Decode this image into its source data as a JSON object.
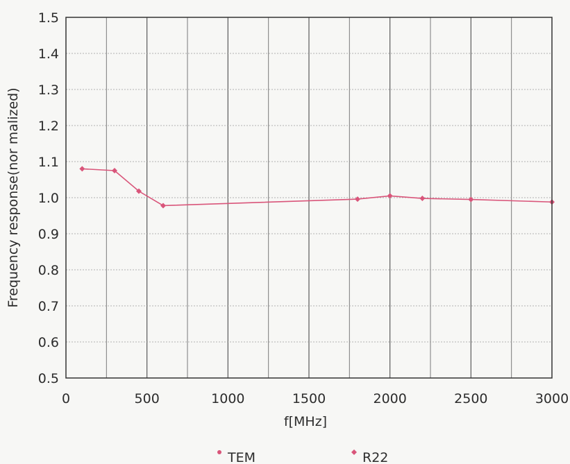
{
  "chart_data": {
    "type": "line",
    "xlabel": "f[MHz]",
    "ylabel": "Frequency response(nor malized)",
    "xlim": [
      0,
      3000
    ],
    "ylim": [
      0.5,
      1.5
    ],
    "xticks": [
      0,
      500,
      1000,
      1500,
      2000,
      2500,
      3000
    ],
    "yticks": [
      "0.5",
      "0.6",
      "0.7",
      "0.8",
      "0.9",
      "1.0",
      "1.1",
      "1.2",
      "1.3",
      "1.4",
      "1.5"
    ],
    "grid": true,
    "legend_position": "bottom",
    "series": [
      {
        "name": "TEM",
        "color": "#d9557a",
        "x": [
          100,
          300,
          450,
          600,
          1800,
          2000,
          2200,
          2500,
          3000
        ],
        "y": [
          1.08,
          1.075,
          1.018,
          0.978,
          0.996,
          1.005,
          0.998,
          0.995,
          0.988
        ]
      },
      {
        "name": "R22",
        "color": "#d9557a",
        "x": [],
        "y": []
      }
    ]
  }
}
